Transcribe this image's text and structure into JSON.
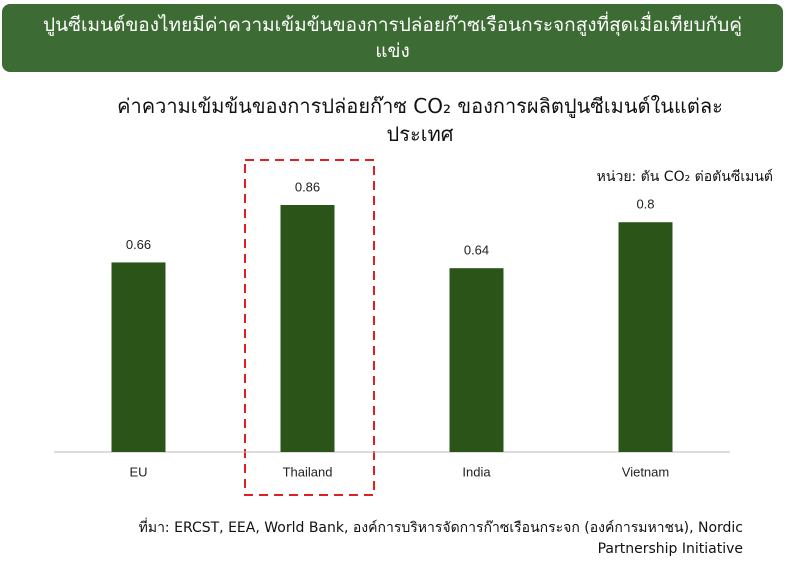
{
  "header": {
    "title": "ปูนซีเมนต์ของไทยมีค่าความเข้มข้นของการปล่อยก๊าซเรือนกระจกสูงที่สุดเมื่อเทียบกับคู่แข่ง"
  },
  "chart_data": {
    "type": "bar",
    "title": "ค่าความเข้มข้นของการปล่อยก๊าซ CO₂ ของการผลิตปูนซีเมนต์ในแต่ละประเทศ",
    "unit_label": "หน่วย: ตัน CO₂ ต่อตันซีเมนต์",
    "categories": [
      "EU",
      "Thailand",
      "India",
      "Vietnam"
    ],
    "values": [
      0.66,
      0.86,
      0.64,
      0.8
    ],
    "color": "#2b5518"
  },
  "footnote": "ที่มา: ERCST, EEA, World Bank, องค์การบริหารจัดการก๊าซเรือนกระจก (องค์การมหาชน), Nordic Partnership Initiative"
}
